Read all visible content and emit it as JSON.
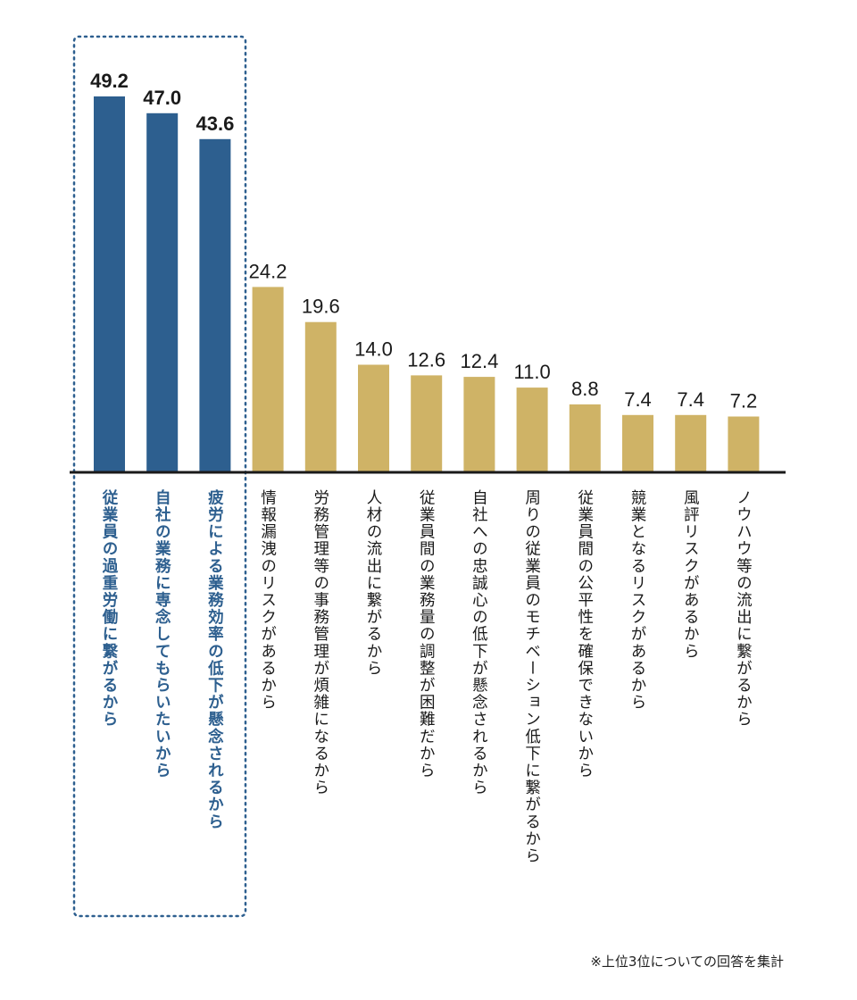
{
  "colors": {
    "highlight": "#2d5f8f",
    "normal": "#cfb366",
    "axis": "#1a1a1a",
    "highlight_text": "#2d5f8f",
    "normal_text": "#1a1a1a",
    "box": "#2d5f8f"
  },
  "footnote": "※上位3位についての回答を集計",
  "chart_data": {
    "type": "bar",
    "title": "",
    "xlabel": "",
    "ylabel": "",
    "ylim": [
      0,
      50
    ],
    "grid": false,
    "highlight_count": 3,
    "categories": [
      "従業員の過重労働に繋がるから",
      "自社の業務に専念してもらいたいから",
      "疲労による業務効率の低下が懸念されるから",
      "情報漏洩のリスクがあるから",
      "労務管理等の事務管理が煩雑になるから",
      "人材の流出に繋がるから",
      "従業員間の業務量の調整が困難だから",
      "自社への忠誠心の低下が懸念されるから",
      "周りの従業員のモチベーション低下に繋がるから",
      "従業員間の公平性を確保できないから",
      "競業となるリスクがあるから",
      "風評リスクがあるから",
      "ノウハウ等の流出に繋がるから"
    ],
    "values": [
      49.2,
      47.0,
      43.6,
      24.2,
      19.6,
      14.0,
      12.6,
      12.4,
      11.0,
      8.8,
      7.4,
      7.4,
      7.2
    ],
    "value_labels": [
      "49.2",
      "47.0",
      "43.6",
      "24.2",
      "19.6",
      "14.0",
      "12.6",
      "12.4",
      "11.0",
      "8.8",
      "7.4",
      "7.4",
      "7.2"
    ]
  }
}
